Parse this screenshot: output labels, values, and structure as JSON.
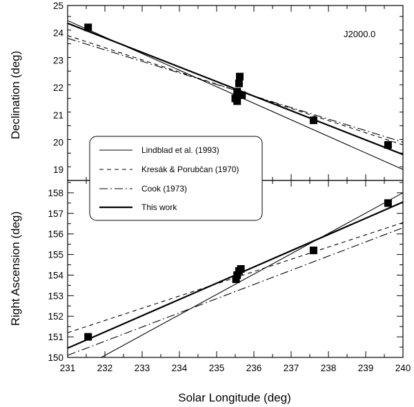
{
  "chart_data": [
    {
      "type": "line",
      "panel": "declination",
      "xlabel": "Solar Longitude (deg)",
      "ylabel": "Declination (deg)",
      "xlim": [
        231,
        240
      ],
      "ylim": [
        18.6,
        25
      ],
      "xticks": [
        231,
        232,
        233,
        234,
        235,
        236,
        237,
        238,
        239,
        240
      ],
      "yticks": [
        19,
        20,
        21,
        22,
        23,
        24,
        25
      ],
      "annotation": "J2000.0",
      "points": [
        {
          "x": 231.55,
          "y": 24.2
        },
        {
          "x": 235.5,
          "y": 21.6
        },
        {
          "x": 235.55,
          "y": 21.85
        },
        {
          "x": 235.6,
          "y": 22.15
        },
        {
          "x": 235.62,
          "y": 22.4
        },
        {
          "x": 235.55,
          "y": 21.5
        },
        {
          "x": 235.68,
          "y": 21.72
        },
        {
          "x": 237.6,
          "y": 20.8
        },
        {
          "x": 239.6,
          "y": 19.9
        }
      ],
      "series": [
        {
          "name": "Lindblad et al. (1993)",
          "style": "thin",
          "x": [
            231,
            240
          ],
          "y": [
            24.45,
            19.0
          ]
        },
        {
          "name": "Kresák & Porubčan (1970)",
          "style": "dashed",
          "x": [
            231,
            240
          ],
          "y": [
            23.9,
            19.9
          ]
        },
        {
          "name": "Cook (1973)",
          "style": "dashdot",
          "x": [
            231,
            240
          ],
          "y": [
            23.8,
            20.0
          ]
        },
        {
          "name": "This work",
          "style": "thick",
          "x": [
            231,
            240
          ],
          "y": [
            24.35,
            19.55
          ]
        }
      ]
    },
    {
      "type": "line",
      "panel": "right-ascension",
      "xlabel": "Solar Longitude (deg)",
      "ylabel": "Right Ascension (deg)",
      "xlim": [
        231,
        240
      ],
      "ylim": [
        150,
        158.6
      ],
      "xticks": [
        231,
        232,
        233,
        234,
        235,
        236,
        237,
        238,
        239,
        240
      ],
      "yticks": [
        150,
        151,
        152,
        153,
        154,
        155,
        156,
        157,
        158
      ],
      "points": [
        {
          "x": 231.55,
          "y": 151.0
        },
        {
          "x": 235.52,
          "y": 153.8
        },
        {
          "x": 235.55,
          "y": 154.0
        },
        {
          "x": 235.6,
          "y": 154.2
        },
        {
          "x": 235.65,
          "y": 154.3
        },
        {
          "x": 237.6,
          "y": 155.2
        },
        {
          "x": 239.6,
          "y": 157.5
        }
      ],
      "series": [
        {
          "name": "Lindblad et al. (1993)",
          "style": "thin",
          "x": [
            231.75,
            240
          ],
          "y": [
            149.85,
            158.0
          ]
        },
        {
          "name": "Kresák & Porubčan (1970)",
          "style": "dashed",
          "x": [
            231,
            240
          ],
          "y": [
            151.2,
            156.55
          ]
        },
        {
          "name": "Cook (1973)",
          "style": "dashdot",
          "x": [
            231,
            240
          ],
          "y": [
            150.1,
            156.3
          ]
        },
        {
          "name": "This work",
          "style": "thick",
          "x": [
            231,
            240
          ],
          "y": [
            150.45,
            157.55
          ]
        }
      ]
    }
  ]
}
